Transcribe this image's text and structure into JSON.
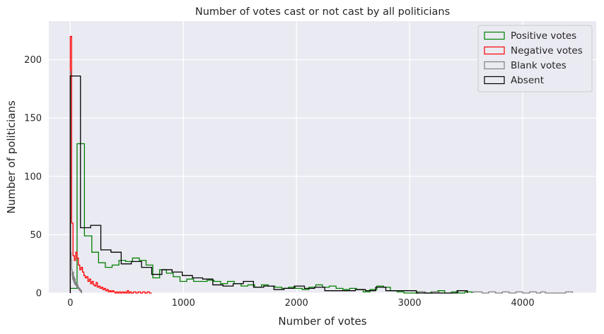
{
  "chart_data": {
    "type": "step-histogram",
    "title": "Number of votes cast or not cast by all politicians",
    "xlabel": "Number of votes",
    "ylabel": "Number of politicians",
    "xlim": [
      -190,
      4650
    ],
    "ylim": [
      0,
      233
    ],
    "xticks": [
      0,
      1000,
      2000,
      3000,
      4000
    ],
    "yticks": [
      0,
      50,
      100,
      150,
      200
    ],
    "grid": true,
    "legend_position": "top-right",
    "series": [
      {
        "name": "Positive votes",
        "color": "#008000",
        "bins": [
          [
            0,
            60,
            4
          ],
          [
            60,
            125,
            128
          ],
          [
            125,
            190,
            49
          ],
          [
            190,
            250,
            35
          ],
          [
            250,
            310,
            26
          ],
          [
            310,
            370,
            22
          ],
          [
            370,
            430,
            24
          ],
          [
            430,
            490,
            28
          ],
          [
            490,
            550,
            27
          ],
          [
            550,
            610,
            30
          ],
          [
            610,
            670,
            28
          ],
          [
            670,
            730,
            24
          ],
          [
            730,
            790,
            13
          ],
          [
            790,
            850,
            20
          ],
          [
            850,
            910,
            17
          ],
          [
            910,
            970,
            14
          ],
          [
            970,
            1030,
            10
          ],
          [
            1030,
            1090,
            12
          ],
          [
            1090,
            1150,
            10
          ],
          [
            1150,
            1210,
            10
          ],
          [
            1210,
            1270,
            11
          ],
          [
            1270,
            1330,
            10
          ],
          [
            1330,
            1390,
            8
          ],
          [
            1390,
            1450,
            10
          ],
          [
            1450,
            1510,
            8
          ],
          [
            1510,
            1570,
            6
          ],
          [
            1570,
            1630,
            7
          ],
          [
            1630,
            1690,
            5
          ],
          [
            1690,
            1750,
            7
          ],
          [
            1750,
            1810,
            6
          ],
          [
            1810,
            1870,
            5
          ],
          [
            1870,
            1930,
            4
          ],
          [
            1930,
            1990,
            5
          ],
          [
            1990,
            2050,
            4
          ],
          [
            2050,
            2110,
            3
          ],
          [
            2110,
            2170,
            5
          ],
          [
            2170,
            2230,
            7
          ],
          [
            2230,
            2290,
            5
          ],
          [
            2290,
            2350,
            6
          ],
          [
            2350,
            2410,
            4
          ],
          [
            2410,
            2470,
            3
          ],
          [
            2470,
            2530,
            4
          ],
          [
            2530,
            2590,
            3
          ],
          [
            2590,
            2650,
            1
          ],
          [
            2650,
            2710,
            3
          ],
          [
            2710,
            2770,
            6
          ],
          [
            2770,
            2830,
            5
          ],
          [
            2830,
            2890,
            2
          ],
          [
            2890,
            2950,
            1
          ],
          [
            2950,
            3010,
            0
          ],
          [
            3010,
            3070,
            0
          ],
          [
            3070,
            3130,
            1
          ],
          [
            3130,
            3190,
            0
          ],
          [
            3190,
            3250,
            1
          ],
          [
            3250,
            3310,
            2
          ],
          [
            3310,
            3370,
            0
          ],
          [
            3370,
            3430,
            1
          ],
          [
            3430,
            3490,
            0
          ],
          [
            3490,
            3550,
            1
          ]
        ]
      },
      {
        "name": "Negative votes",
        "color": "#ff0000",
        "bins": [
          [
            0,
            12,
            220
          ],
          [
            12,
            24,
            60
          ],
          [
            24,
            36,
            32
          ],
          [
            36,
            48,
            28
          ],
          [
            48,
            60,
            35
          ],
          [
            60,
            72,
            30
          ],
          [
            72,
            84,
            24
          ],
          [
            84,
            96,
            20
          ],
          [
            96,
            108,
            22
          ],
          [
            108,
            120,
            18
          ],
          [
            120,
            132,
            15
          ],
          [
            132,
            144,
            13
          ],
          [
            144,
            156,
            14
          ],
          [
            156,
            168,
            10
          ],
          [
            168,
            180,
            12
          ],
          [
            180,
            192,
            8
          ],
          [
            192,
            204,
            10
          ],
          [
            204,
            216,
            7
          ],
          [
            216,
            228,
            6
          ],
          [
            228,
            240,
            9
          ],
          [
            240,
            252,
            5
          ],
          [
            252,
            264,
            6
          ],
          [
            264,
            276,
            4
          ],
          [
            276,
            288,
            5
          ],
          [
            288,
            300,
            3
          ],
          [
            300,
            312,
            4
          ],
          [
            312,
            324,
            2
          ],
          [
            324,
            336,
            3
          ],
          [
            336,
            348,
            1
          ],
          [
            348,
            360,
            2
          ],
          [
            360,
            372,
            1
          ],
          [
            372,
            384,
            2
          ],
          [
            384,
            396,
            1
          ],
          [
            396,
            408,
            0
          ],
          [
            408,
            420,
            1
          ],
          [
            420,
            432,
            0
          ],
          [
            432,
            444,
            1
          ],
          [
            444,
            456,
            0
          ],
          [
            456,
            468,
            1
          ],
          [
            468,
            480,
            0
          ],
          [
            480,
            492,
            1
          ],
          [
            492,
            504,
            0
          ],
          [
            504,
            516,
            2
          ],
          [
            516,
            528,
            0
          ],
          [
            528,
            540,
            1
          ],
          [
            540,
            560,
            0
          ],
          [
            560,
            580,
            1
          ],
          [
            580,
            600,
            0
          ],
          [
            600,
            620,
            1
          ],
          [
            620,
            640,
            0
          ],
          [
            640,
            660,
            1
          ],
          [
            660,
            680,
            0
          ],
          [
            680,
            700,
            1
          ],
          [
            700,
            720,
            0
          ]
        ]
      },
      {
        "name": "Blank votes",
        "color": "#808080",
        "bins": [
          [
            0,
            4,
            190
          ],
          [
            4,
            8,
            35
          ],
          [
            8,
            12,
            28
          ],
          [
            12,
            16,
            20
          ],
          [
            16,
            20,
            15
          ],
          [
            20,
            24,
            12
          ],
          [
            24,
            28,
            18
          ],
          [
            28,
            32,
            10
          ],
          [
            32,
            36,
            14
          ],
          [
            36,
            40,
            8
          ],
          [
            40,
            44,
            12
          ],
          [
            44,
            48,
            7
          ],
          [
            48,
            52,
            9
          ],
          [
            52,
            56,
            6
          ],
          [
            56,
            60,
            8
          ],
          [
            60,
            64,
            5
          ],
          [
            64,
            68,
            7
          ],
          [
            68,
            72,
            4
          ],
          [
            72,
            76,
            5
          ],
          [
            76,
            80,
            3
          ],
          [
            80,
            84,
            4
          ],
          [
            84,
            88,
            2
          ],
          [
            88,
            92,
            3
          ],
          [
            92,
            96,
            1
          ],
          [
            96,
            100,
            2
          ],
          [
            100,
            104,
            0
          ],
          [
            3080,
            3140,
            1
          ],
          [
            3140,
            3200,
            0
          ],
          [
            3200,
            3260,
            1
          ],
          [
            3260,
            3320,
            0
          ],
          [
            3560,
            3640,
            1
          ],
          [
            3640,
            3700,
            0
          ],
          [
            3700,
            3760,
            1
          ],
          [
            3760,
            3820,
            0
          ],
          [
            3820,
            3880,
            1
          ],
          [
            3880,
            3940,
            0
          ],
          [
            3940,
            4000,
            1
          ],
          [
            4000,
            4060,
            0
          ],
          [
            4060,
            4120,
            1
          ],
          [
            4120,
            4160,
            0
          ],
          [
            4160,
            4200,
            1
          ],
          [
            4200,
            4380,
            0
          ],
          [
            4380,
            4440,
            1
          ]
        ]
      },
      {
        "name": "Absent",
        "color": "#000000",
        "bins": [
          [
            0,
            90,
            186
          ],
          [
            90,
            180,
            56
          ],
          [
            180,
            270,
            58
          ],
          [
            270,
            360,
            37
          ],
          [
            360,
            450,
            35
          ],
          [
            450,
            540,
            25
          ],
          [
            540,
            630,
            27
          ],
          [
            630,
            720,
            22
          ],
          [
            720,
            810,
            16
          ],
          [
            810,
            900,
            20
          ],
          [
            900,
            990,
            18
          ],
          [
            990,
            1080,
            15
          ],
          [
            1080,
            1170,
            13
          ],
          [
            1170,
            1260,
            12
          ],
          [
            1260,
            1350,
            7
          ],
          [
            1350,
            1440,
            6
          ],
          [
            1440,
            1530,
            8
          ],
          [
            1530,
            1620,
            10
          ],
          [
            1620,
            1710,
            5
          ],
          [
            1710,
            1800,
            6
          ],
          [
            1800,
            1890,
            3
          ],
          [
            1890,
            1980,
            4
          ],
          [
            1980,
            2070,
            6
          ],
          [
            2070,
            2160,
            4
          ],
          [
            2160,
            2250,
            5
          ],
          [
            2250,
            2340,
            2
          ],
          [
            2340,
            2430,
            2
          ],
          [
            2430,
            2520,
            2
          ],
          [
            2520,
            2610,
            3
          ],
          [
            2610,
            2700,
            2
          ],
          [
            2700,
            2790,
            5
          ],
          [
            2790,
            2880,
            2
          ],
          [
            2880,
            2970,
            2
          ],
          [
            2970,
            3060,
            2
          ],
          [
            3060,
            3150,
            0
          ],
          [
            3150,
            3240,
            0
          ],
          [
            3240,
            3330,
            0
          ],
          [
            3330,
            3420,
            0
          ],
          [
            3420,
            3510,
            2
          ]
        ]
      }
    ]
  }
}
